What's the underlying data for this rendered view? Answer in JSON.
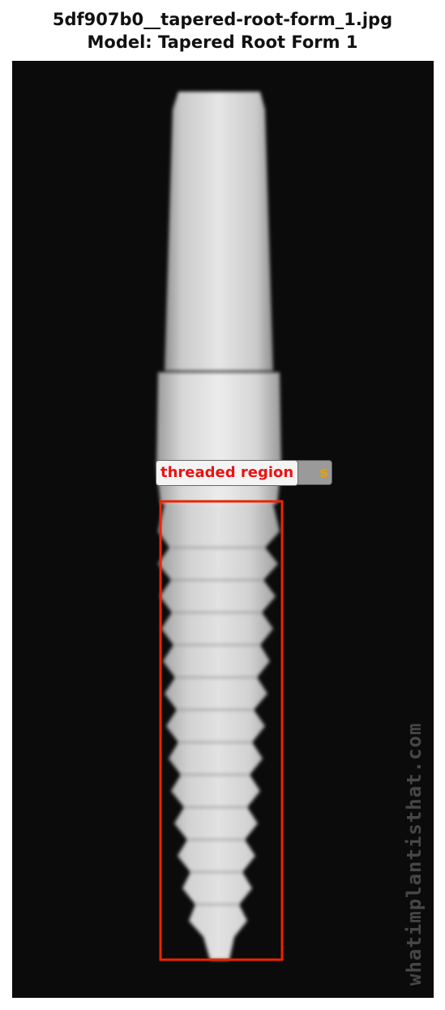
{
  "header": {
    "filename": "5df907b0__tapered-root-form_1.jpg",
    "model_line": "Model: Tapered Root Form 1"
  },
  "image": {
    "watermark": "whatimplantisthat.com"
  },
  "annotations": [
    {
      "label": "threaded region",
      "hidden_label_tail": "s",
      "box_color": "#ee2200",
      "hidden_label_color": "#e8a000"
    }
  ]
}
